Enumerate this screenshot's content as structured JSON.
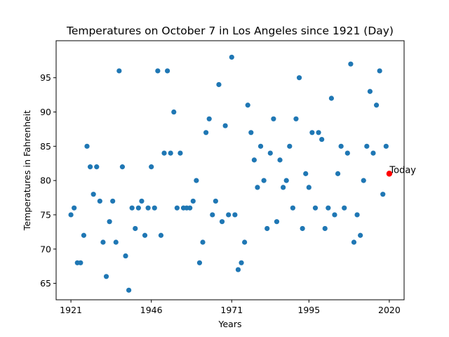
{
  "chart_data": {
    "type": "scatter",
    "title": "Temperatures on October 7 in Los Angeles since 1921 (Day)",
    "xlabel": "Years",
    "ylabel": "Temperatures in Fahrenheit",
    "xlim": [
      1916.4,
      2024.6
    ],
    "ylim": [
      62.6,
      100.4
    ],
    "xticks": [
      1921,
      1946,
      1971,
      1995,
      2020
    ],
    "yticks": [
      65,
      70,
      75,
      80,
      85,
      90,
      95
    ],
    "grid": false,
    "point_color": "#1f77b4",
    "highlight_color": "#ff0000",
    "series": [
      {
        "x": [
          1921,
          1922,
          1923,
          1924,
          1925,
          1926,
          1927,
          1928,
          1929,
          1930,
          1931,
          1932,
          1933,
          1934,
          1935,
          1936,
          1937,
          1938,
          1939,
          1940,
          1941,
          1942,
          1943,
          1944,
          1945,
          1946,
          1947,
          1948,
          1949,
          1950,
          1951,
          1952,
          1953,
          1954,
          1955,
          1956,
          1957,
          1958,
          1959,
          1960,
          1961,
          1962,
          1963,
          1964,
          1965,
          1966,
          1967,
          1968,
          1969,
          1970,
          1971,
          1972,
          1973,
          1974,
          1975,
          1976,
          1977,
          1978,
          1979,
          1980,
          1981,
          1982,
          1983,
          1984,
          1985,
          1986,
          1987,
          1988,
          1989,
          1990,
          1991,
          1992,
          1993,
          1994,
          1995,
          1996,
          1997,
          1998,
          1999,
          2000,
          2001,
          2002,
          2003,
          2004,
          2005,
          2006,
          2007,
          2008,
          2009,
          2010,
          2011,
          2012,
          2013,
          2014,
          2015,
          2016,
          2017,
          2018,
          2019
        ],
        "y": [
          75,
          76,
          68,
          68,
          72,
          85,
          82,
          78,
          82,
          77,
          71,
          66,
          74,
          77,
          71,
          96,
          82,
          69,
          64,
          76,
          73,
          76,
          77,
          72,
          76,
          82,
          76,
          96,
          72,
          84,
          96,
          84,
          90,
          76,
          84,
          76,
          76,
          76,
          77,
          80,
          68,
          71,
          87,
          89,
          75,
          77,
          94,
          74,
          88,
          75,
          98,
          75,
          67,
          68,
          71,
          91,
          87,
          83,
          79,
          85,
          80,
          73,
          84,
          89,
          74,
          83,
          79,
          80,
          85,
          76,
          89,
          95,
          73,
          81,
          79,
          87,
          76,
          87,
          86,
          73,
          76,
          92,
          75,
          81,
          85,
          76,
          84,
          97,
          71,
          75,
          72,
          80,
          85,
          93,
          84,
          91,
          96,
          78,
          85
        ]
      }
    ],
    "highlight": {
      "x": 2020,
      "y": 81
    },
    "annotations": [
      {
        "text": "Today"
      }
    ]
  }
}
